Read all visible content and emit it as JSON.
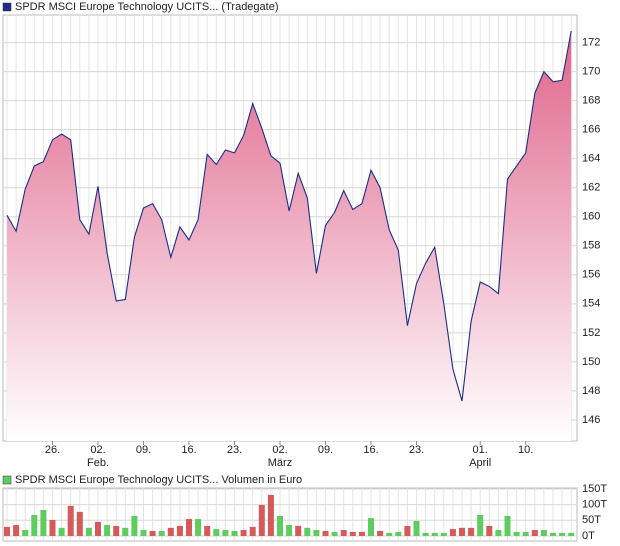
{
  "chart_data": [
    {
      "type": "area",
      "categories": [
        null,
        null,
        null,
        null,
        null,
        "26.",
        null,
        null,
        null,
        null,
        "02.",
        null,
        null,
        null,
        null,
        "09.",
        null,
        null,
        null,
        null,
        "16.",
        null,
        null,
        null,
        null,
        "23.",
        null,
        null,
        null,
        null,
        "02.",
        null,
        null,
        null,
        null,
        "09.",
        null,
        null,
        null,
        null,
        "16.",
        null,
        null,
        null,
        null,
        "23.",
        null,
        null,
        null,
        null,
        null,
        null,
        "01.",
        null,
        null,
        null,
        null,
        "10.",
        null,
        null,
        null,
        null,
        null
      ],
      "month_labels": [
        null,
        null,
        null,
        null,
        null,
        null,
        null,
        null,
        null,
        null,
        "Feb.",
        null,
        null,
        null,
        null,
        null,
        null,
        null,
        null,
        null,
        null,
        null,
        null,
        null,
        null,
        null,
        null,
        null,
        null,
        null,
        "März",
        null,
        null,
        null,
        null,
        null,
        null,
        null,
        null,
        null,
        null,
        null,
        null,
        null,
        null,
        null,
        null,
        null,
        null,
        null,
        null,
        null,
        "April",
        null,
        null,
        null,
        null,
        null,
        null,
        null,
        null,
        null,
        null
      ],
      "series": [
        {
          "name": "SPDR MSCI Europe Technology UCITS... (Tradegate)",
          "color": "#1a2d8a",
          "values": [
            160.1,
            159.0,
            161.9,
            163.5,
            163.8,
            165.3,
            165.7,
            165.3,
            159.8,
            158.8,
            162.1,
            157.5,
            154.2,
            154.3,
            158.6,
            160.6,
            160.9,
            159.8,
            157.2,
            159.3,
            158.4,
            159.8,
            164.3,
            163.6,
            164.6,
            164.4,
            165.6,
            167.8,
            166.1,
            164.2,
            163.7,
            160.4,
            163.0,
            161.3,
            156.1,
            159.4,
            160.3,
            161.8,
            160.5,
            160.9,
            163.2,
            162.0,
            159.1,
            157.7,
            152.5,
            155.4,
            156.8,
            157.9,
            154.0,
            149.5,
            147.3,
            152.8,
            155.5,
            155.2,
            154.7,
            162.6,
            163.5,
            164.4,
            168.5,
            170.0,
            169.3,
            169.4,
            172.8
          ]
        }
      ],
      "fill_color": "#e0648c",
      "ylim": [
        144.55,
        173.9
      ],
      "yticks": [
        146,
        148,
        150,
        152,
        154,
        156,
        158,
        160,
        162,
        164,
        166,
        168,
        170,
        172
      ],
      "grid": true
    },
    {
      "type": "bar",
      "series": [
        {
          "name": "SPDR MSCI Europe Technology UCITS... Volumen in Euro",
          "color": "#5fcc5f",
          "values": [
            29,
            35,
            19,
            67,
            83,
            51,
            26,
            96,
            77,
            26,
            45,
            35,
            32,
            26,
            64,
            19,
            16,
            16,
            26,
            32,
            54,
            54,
            32,
            22,
            19,
            16,
            19,
            29,
            99,
            131,
            64,
            35,
            32,
            26,
            19,
            16,
            13,
            19,
            13,
            13,
            57,
            16,
            10,
            13,
            32,
            48,
            10,
            10,
            10,
            22,
            26,
            26,
            67,
            32,
            19,
            64,
            13,
            13,
            19,
            19,
            10,
            10,
            10
          ],
          "colors": [
            "#d65a5a",
            "#d65a5a",
            "#5fcc5f",
            "#5fcc5f",
            "#5fcc5f",
            "#d65a5a",
            "#5fcc5f",
            "#d65a5a",
            "#d65a5a",
            "#5fcc5f",
            "#d65a5a",
            "#5fcc5f",
            "#d65a5a",
            "#5fcc5f",
            "#5fcc5f",
            "#5fcc5f",
            "#d65a5a",
            "#5fcc5f",
            "#d65a5a",
            "#d65a5a",
            "#d65a5a",
            "#5fcc5f",
            "#d65a5a",
            "#5fcc5f",
            "#5fcc5f",
            "#5fcc5f",
            "#d65a5a",
            "#d65a5a",
            "#d65a5a",
            "#d65a5a",
            "#5fcc5f",
            "#5fcc5f",
            "#d65a5a",
            "#5fcc5f",
            "#5fcc5f",
            "#d65a5a",
            "#5fcc5f",
            "#d65a5a",
            "#d65a5a",
            "#d65a5a",
            "#5fcc5f",
            "#d65a5a",
            "#5fcc5f",
            "#5fcc5f",
            "#d65a5a",
            "#5fcc5f",
            "#5fcc5f",
            "#5fcc5f",
            "#5fcc5f",
            "#d65a5a",
            "#d65a5a",
            "#d65a5a",
            "#5fcc5f",
            "#d65a5a",
            "#5fcc5f",
            "#5fcc5f",
            "#5fcc5f",
            "#5fcc5f",
            "#d65a5a",
            "#5fcc5f",
            "#5fcc5f",
            "#5fcc5f",
            "#5fcc5f"
          ]
        }
      ],
      "ylim": [
        -16,
        153
      ],
      "yticks": [
        {
          "value": 150,
          "label": "150T"
        },
        {
          "value": 100,
          "label": "100T"
        },
        {
          "value": 50,
          "label": "50T"
        },
        {
          "value": 0,
          "label": "0T"
        }
      ],
      "grid": true
    }
  ]
}
